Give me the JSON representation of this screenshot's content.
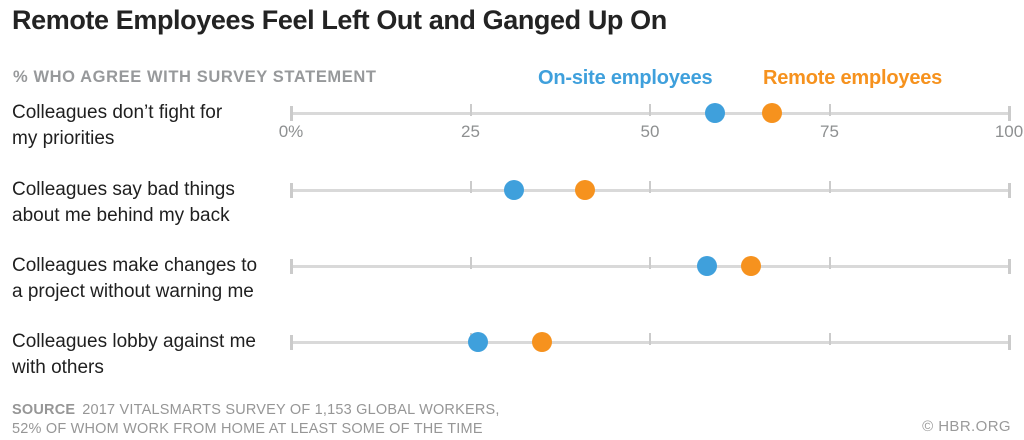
{
  "title": "Remote Employees Feel Left Out and Ganged Up On",
  "subtitle": "% WHO AGREE WITH SURVEY STATEMENT",
  "legend": {
    "onsite": {
      "label": "On-site employees",
      "color": "#3fa0dc"
    },
    "remote": {
      "label": "Remote employees",
      "color": "#f6921e"
    }
  },
  "chart_data": {
    "type": "scatter",
    "variant": "horizontal-dot-plot",
    "title": "Remote Employees Feel Left Out and Ganged Up On",
    "xlabel": "% WHO AGREE WITH SURVEY STATEMENT",
    "categories": [
      "Colleagues don’t fight for my priorities",
      "Colleagues say bad things about me behind my back",
      "Colleagues make changes to a project without warning me",
      "Colleagues lobby against me with others"
    ],
    "category_lines": [
      [
        "Colleagues don’t fight for",
        "my priorities"
      ],
      [
        "Colleagues say bad things",
        "about me behind my back"
      ],
      [
        "Colleagues make changes to",
        "a project without warning me"
      ],
      [
        "Colleagues lobby against me",
        "with others"
      ]
    ],
    "series": [
      {
        "name": "On-site employees",
        "color": "#3fa0dc",
        "values": [
          59,
          31,
          58,
          26
        ]
      },
      {
        "name": "Remote employees",
        "color": "#f6921e",
        "values": [
          67,
          41,
          64,
          35
        ]
      }
    ],
    "xlim": [
      0,
      100
    ],
    "xticks": [
      {
        "value": 0,
        "label": "0%"
      },
      {
        "value": 25,
        "label": "25"
      },
      {
        "value": 50,
        "label": "50"
      },
      {
        "value": 75,
        "label": "75"
      },
      {
        "value": 100,
        "label": "100"
      }
    ],
    "grid": false,
    "legend_position": "top-right",
    "axis_color": "#d9d9d9"
  },
  "source": {
    "label": "SOURCE",
    "text_line1": "2017 VITALSMARTS SURVEY OF 1,153 GLOBAL WORKERS,",
    "text_line2": "52% OF WHOM WORK FROM HOME AT LEAST SOME OF THE TIME"
  },
  "credit": "© HBR.ORG"
}
